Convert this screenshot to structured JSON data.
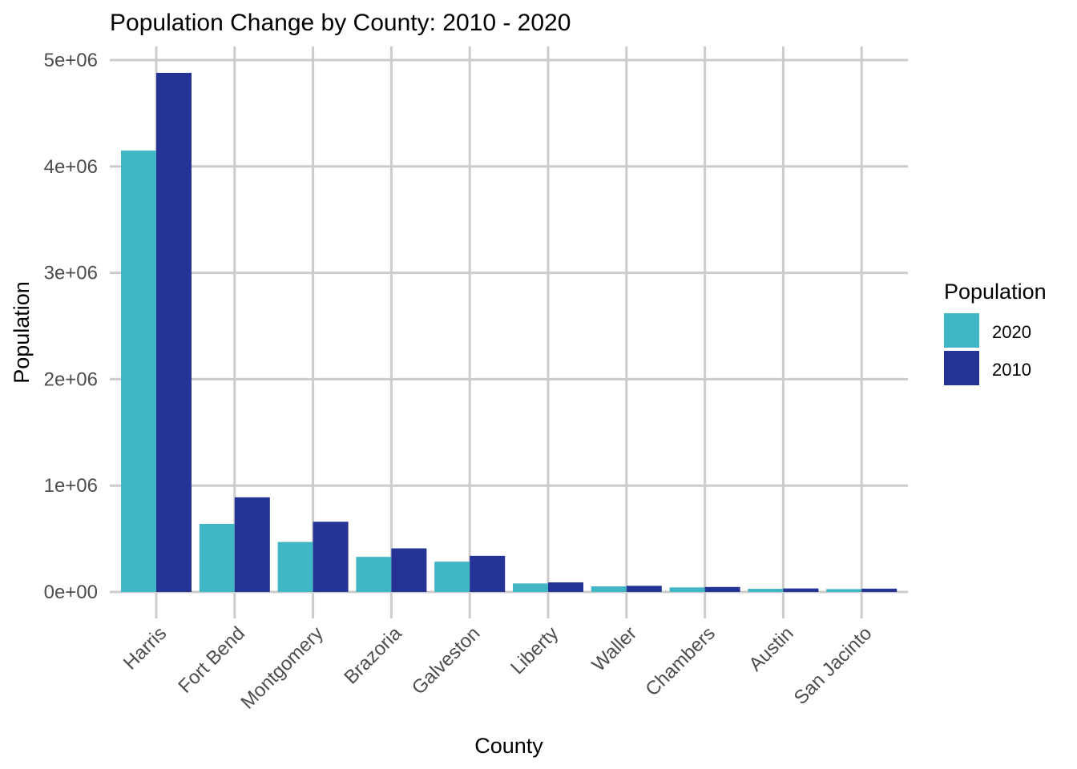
{
  "chart_data": {
    "type": "bar",
    "title": "Population Change by County: 2010 - 2020",
    "xlabel": "County",
    "ylabel": "Population",
    "categories": [
      "Harris",
      "Fort Bend",
      "Montgomery",
      "Brazoria",
      "Galveston",
      "Liberty",
      "Waller",
      "Chambers",
      "Austin",
      "San Jacinto"
    ],
    "series": [
      {
        "name": "2020",
        "color": "#41b6c4",
        "values": [
          4150000,
          640000,
          470000,
          330000,
          285000,
          80000,
          53000,
          43000,
          30000,
          27000
        ]
      },
      {
        "name": "2010",
        "color": "#253494",
        "values": [
          4880000,
          890000,
          660000,
          410000,
          340000,
          90000,
          58000,
          47000,
          33000,
          31000
        ]
      }
    ],
    "ylim": [
      0,
      5000000
    ],
    "yticks": [
      0,
      1000000,
      2000000,
      3000000,
      4000000,
      5000000
    ],
    "ytick_labels": [
      "0e+00",
      "1e+06",
      "2e+06",
      "3e+06",
      "4e+06",
      "5e+06"
    ],
    "legend_title": "Population",
    "legend_position": "right",
    "grid": true
  }
}
